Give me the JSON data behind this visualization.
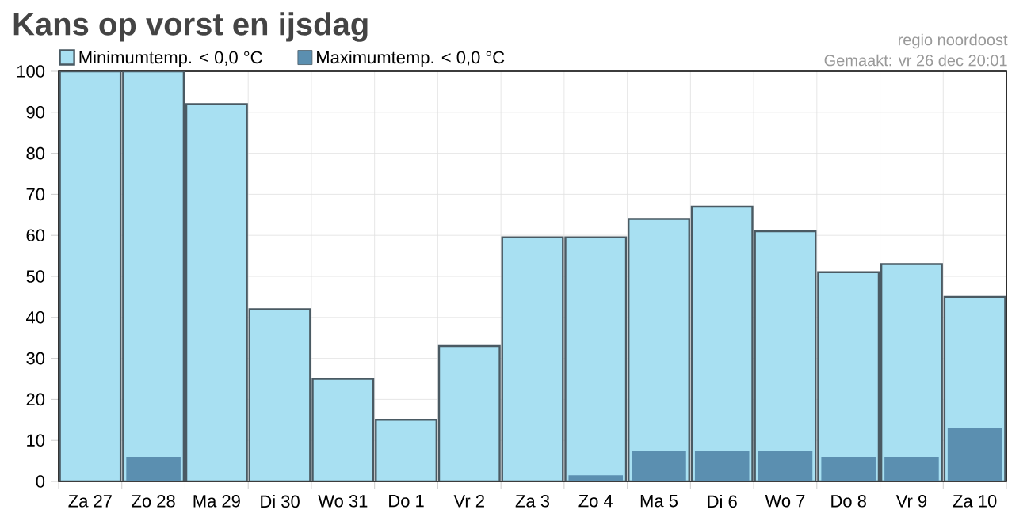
{
  "chart_data": {
    "type": "bar",
    "title": "Kans op vorst en ijsdag",
    "categories": [
      "Za 27",
      "Zo 28",
      "Ma 29",
      "Di 30",
      "Wo 31",
      "Do 1",
      "Vr 2",
      "Za 3",
      "Zo 4",
      "Ma 5",
      "Di 6",
      "Wo 7",
      "Do 8",
      "Vr 9",
      "Za 10"
    ],
    "series": [
      {
        "name": "Minimumtemp. < 0,0 °C",
        "color": "#a8e0f2",
        "values": [
          100,
          100,
          92,
          42,
          25,
          15,
          33,
          59.5,
          59.5,
          64,
          67,
          61,
          51,
          53,
          45
        ]
      },
      {
        "name": "Maximumtemp. < 0,0 °C",
        "color": "#5b8fb0",
        "values": [
          0,
          6,
          0,
          0,
          0,
          0,
          0,
          0,
          1.5,
          7.5,
          7.5,
          7.5,
          6,
          6,
          13
        ]
      }
    ],
    "ylim": [
      0,
      100
    ],
    "yticks": [
      0,
      10,
      20,
      30,
      40,
      50,
      60,
      70,
      80,
      90,
      100
    ],
    "grid": true,
    "legend": "top left",
    "annotations": [
      "regio noordoost",
      "Gemaakt: vr 26 dec 20:01"
    ]
  }
}
